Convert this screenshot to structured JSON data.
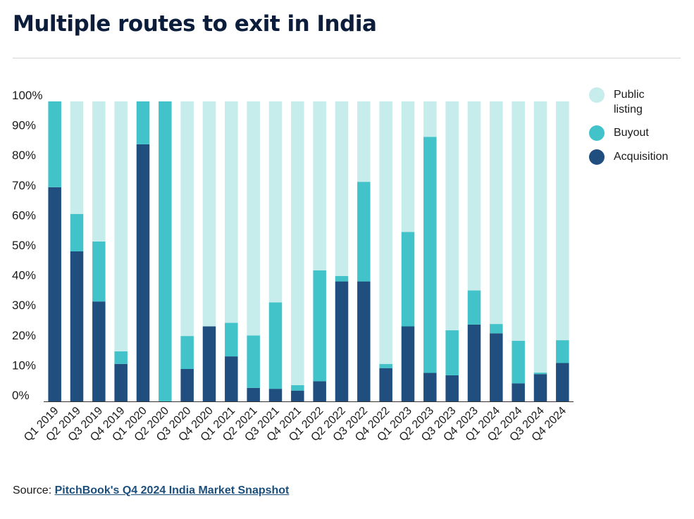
{
  "title": "Multiple routes to exit in India",
  "source": {
    "prefix": "Source: ",
    "link_text": "PitchBook's Q4 2024 India Market Snapshot"
  },
  "chart_data": {
    "type": "bar",
    "stacked": true,
    "categories": [
      "Q1 2019",
      "Q2 2019",
      "Q3 2019",
      "Q4 2019",
      "Q1 2020",
      "Q2 2020",
      "Q3 2020",
      "Q4 2020",
      "Q1 2021",
      "Q2 2021",
      "Q3 2021",
      "Q4 2021",
      "Q1 2022",
      "Q2 2022",
      "Q3 2022",
      "Q4 2022",
      "Q1 2023",
      "Q2 2023",
      "Q3 2023",
      "Q4 2023",
      "Q1 2024",
      "Q2 2024",
      "Q3 2024",
      "Q4 2024"
    ],
    "series": [
      {
        "name": "Acquisition",
        "color": "#1f4e7f",
        "values": [
          71.4,
          50.0,
          33.3,
          12.5,
          85.7,
          0,
          10.8,
          25.0,
          15.0,
          4.5,
          4.2,
          3.6,
          6.7,
          40.0,
          40.0,
          11.1,
          25.0,
          9.5,
          8.7,
          25.6,
          22.7,
          6.0,
          9.1,
          12.8
        ]
      },
      {
        "name": "Buyout",
        "color": "#41c3c9",
        "values": [
          28.6,
          12.5,
          20.0,
          4.2,
          14.3,
          100,
          11.0,
          0,
          11.2,
          17.5,
          28.8,
          1.8,
          37.0,
          1.8,
          33.2,
          1.4,
          31.5,
          78.7,
          15.0,
          11.4,
          3.1,
          14.2,
          0.5,
          7.6
        ]
      },
      {
        "name": "Public listing",
        "color": "#c6ecec",
        "values": [
          0,
          37.5,
          46.7,
          83.3,
          0,
          0,
          78.2,
          75.0,
          73.8,
          78.0,
          67.0,
          94.6,
          56.3,
          58.2,
          26.8,
          87.5,
          43.5,
          11.8,
          76.3,
          63.0,
          74.2,
          79.8,
          90.4,
          79.6
        ]
      }
    ],
    "ylim": [
      0,
      100
    ],
    "yticks": [
      0,
      10,
      20,
      30,
      40,
      50,
      60,
      70,
      80,
      90,
      100
    ],
    "ytick_labels": [
      "0%",
      "10%",
      "20%",
      "30%",
      "40%",
      "50%",
      "60%",
      "70%",
      "80%",
      "90%",
      "100%"
    ],
    "legend_order": [
      "Public listing",
      "Buyout",
      "Acquisition"
    ],
    "legend": [
      {
        "label": "Public listing",
        "color": "#c6ecec"
      },
      {
        "label": "Buyout",
        "color": "#41c3c9"
      },
      {
        "label": "Acquisition",
        "color": "#1f4e7f"
      }
    ],
    "legend_position": "right",
    "grid": false
  }
}
